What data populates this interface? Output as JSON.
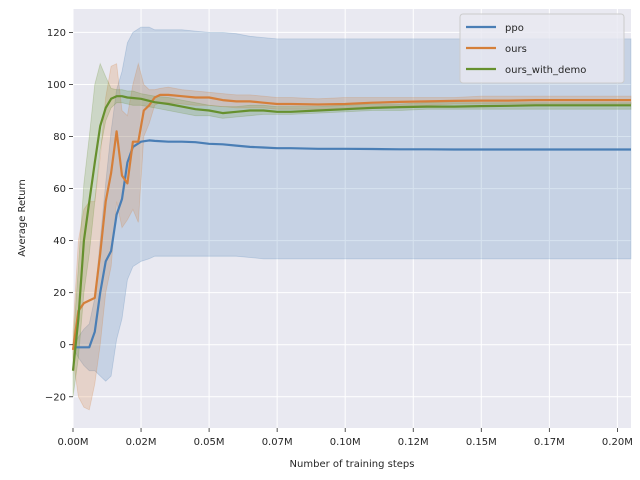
{
  "chart_data": {
    "type": "line",
    "xlabel": "Number of training steps",
    "ylabel": "Average Return",
    "xlim": [
      0,
      205000
    ],
    "ylim": [
      -32,
      129
    ],
    "grid": true,
    "legend_position": "top-right",
    "xticks": [
      {
        "value": 0,
        "label": "0.00M"
      },
      {
        "value": 25000,
        "label": "0.02M"
      },
      {
        "value": 50000,
        "label": "0.05M"
      },
      {
        "value": 75000,
        "label": "0.07M"
      },
      {
        "value": 100000,
        "label": "0.10M"
      },
      {
        "value": 125000,
        "label": "0.12M"
      },
      {
        "value": 150000,
        "label": "0.15M"
      },
      {
        "value": 175000,
        "label": "0.17M"
      },
      {
        "value": 200000,
        "label": "0.20M"
      }
    ],
    "yticks": [
      {
        "value": -20,
        "label": "−20"
      },
      {
        "value": 0,
        "label": "0"
      },
      {
        "value": 20,
        "label": "20"
      },
      {
        "value": 40,
        "label": "40"
      },
      {
        "value": 60,
        "label": "60"
      },
      {
        "value": 80,
        "label": "80"
      },
      {
        "value": 100,
        "label": "100"
      },
      {
        "value": 120,
        "label": "120"
      }
    ],
    "series": [
      {
        "name": "ppo",
        "color": "#4a7eb5",
        "x": [
          0,
          2000,
          4000,
          6000,
          8000,
          10000,
          12000,
          14000,
          16000,
          18000,
          20000,
          22000,
          25000,
          28000,
          30000,
          35000,
          40000,
          45000,
          50000,
          55000,
          60000,
          65000,
          70000,
          75000,
          80000,
          90000,
          100000,
          110000,
          120000,
          130000,
          140000,
          150000,
          160000,
          170000,
          180000,
          190000,
          200000,
          205000
        ],
        "y": [
          -1,
          -1,
          -1,
          -1,
          5,
          20,
          32,
          36,
          50,
          56,
          70,
          76,
          78,
          78.5,
          78.3,
          78,
          78,
          77.8,
          77.2,
          77,
          76.5,
          76,
          75.8,
          75.5,
          75.5,
          75.3,
          75.3,
          75.2,
          75.1,
          75.1,
          75,
          75,
          75,
          75,
          75,
          75,
          75,
          75
        ],
        "lower": [
          -1,
          -5,
          -8,
          -10,
          -10,
          -12,
          -14,
          -12,
          2,
          10,
          25,
          30,
          32,
          33,
          34,
          34,
          34,
          34,
          34,
          34,
          34,
          33.5,
          33,
          33,
          33,
          33,
          33,
          33,
          33,
          33,
          33,
          33,
          33,
          33,
          33,
          33,
          33,
          33
        ],
        "upper": [
          -1,
          3,
          6,
          8,
          18,
          40,
          62,
          82,
          98,
          105,
          116,
          120,
          122,
          122,
          121,
          121,
          121,
          120.5,
          120,
          120,
          119.5,
          118.5,
          118,
          117.5,
          117.5,
          117.5,
          117.5,
          117.5,
          117.5,
          117.5,
          117.5,
          117.5,
          117.5,
          117.5,
          117.5,
          117.5,
          117.5,
          117.5
        ]
      },
      {
        "name": "ours",
        "color": "#d57f3a",
        "x": [
          0,
          2000,
          4000,
          6000,
          8000,
          10000,
          12000,
          14000,
          16000,
          18000,
          20000,
          22000,
          24000,
          26000,
          28000,
          30000,
          32000,
          35000,
          40000,
          45000,
          50000,
          55000,
          60000,
          65000,
          70000,
          75000,
          80000,
          90000,
          100000,
          110000,
          120000,
          130000,
          140000,
          150000,
          160000,
          170000,
          180000,
          190000,
          200000,
          205000
        ],
        "y": [
          -2,
          13,
          16,
          17,
          18,
          35,
          55,
          66,
          82,
          65,
          62,
          78,
          78,
          90,
          92,
          95,
          96,
          96,
          95.5,
          95,
          95,
          94,
          93.5,
          93.5,
          93,
          92.5,
          92.5,
          92.3,
          92.5,
          93,
          93.3,
          93.5,
          93.7,
          93.8,
          93.8,
          94,
          94,
          94,
          94,
          94
        ],
        "lower": [
          -5,
          -20,
          -24,
          -25,
          -15,
          0,
          20,
          30,
          55,
          45,
          48,
          52,
          47,
          80,
          85,
          92,
          93,
          93,
          92.5,
          92,
          92,
          91.5,
          91,
          91,
          91,
          90.5,
          90.5,
          90.5,
          91,
          91.5,
          92,
          92,
          92.5,
          92.5,
          92.5,
          92.5,
          92.5,
          92.5,
          92.5,
          92.5
        ],
        "upper": [
          5,
          40,
          52,
          55,
          55,
          72,
          95,
          107,
          108,
          90,
          88,
          100,
          108,
          100,
          98,
          98,
          98.5,
          99,
          98,
          97.5,
          97,
          96.5,
          96,
          96,
          95.5,
          95,
          95,
          94.5,
          95,
          95,
          95,
          95,
          95,
          95.5,
          95.5,
          95.5,
          95.5,
          95.5,
          95.5,
          95.5
        ]
      },
      {
        "name": "ours_with_demo",
        "color": "#66902e",
        "x": [
          0,
          2000,
          4000,
          6000,
          8000,
          10000,
          12000,
          14000,
          16000,
          18000,
          20000,
          22000,
          25000,
          30000,
          35000,
          40000,
          45000,
          50000,
          55000,
          60000,
          65000,
          70000,
          75000,
          80000,
          90000,
          100000,
          110000,
          120000,
          130000,
          140000,
          150000,
          160000,
          170000,
          180000,
          190000,
          200000,
          205000
        ],
        "y": [
          -10,
          10,
          40,
          55,
          70,
          84,
          91,
          94.5,
          95.5,
          95.5,
          95,
          94.8,
          94.5,
          93.2,
          92.5,
          91.5,
          90.5,
          90,
          89,
          89.5,
          90,
          90,
          89.5,
          89.5,
          90,
          90.5,
          91,
          91.3,
          91.5,
          91.5,
          91.7,
          91.8,
          92,
          92,
          92,
          92,
          92
        ],
        "lower": [
          -20,
          -5,
          20,
          35,
          55,
          75,
          86,
          91,
          93,
          93,
          92.5,
          92,
          92,
          91,
          90,
          89,
          88,
          88,
          87,
          87.5,
          88,
          88.5,
          88.5,
          88.5,
          89,
          89.5,
          90,
          90,
          90.5,
          90.5,
          90.5,
          90.5,
          90.5,
          90.5,
          90.5,
          90.5,
          90.5
        ],
        "upper": [
          0,
          30,
          62,
          80,
          100,
          108,
          103,
          98.5,
          98,
          98,
          97.5,
          97.5,
          96.5,
          95.5,
          95,
          94,
          93,
          92,
          91.5,
          91.5,
          92,
          92,
          91.5,
          91.5,
          91.5,
          92,
          92.5,
          92.5,
          93,
          93,
          93,
          93,
          93,
          93,
          93,
          93,
          93
        ]
      }
    ]
  }
}
